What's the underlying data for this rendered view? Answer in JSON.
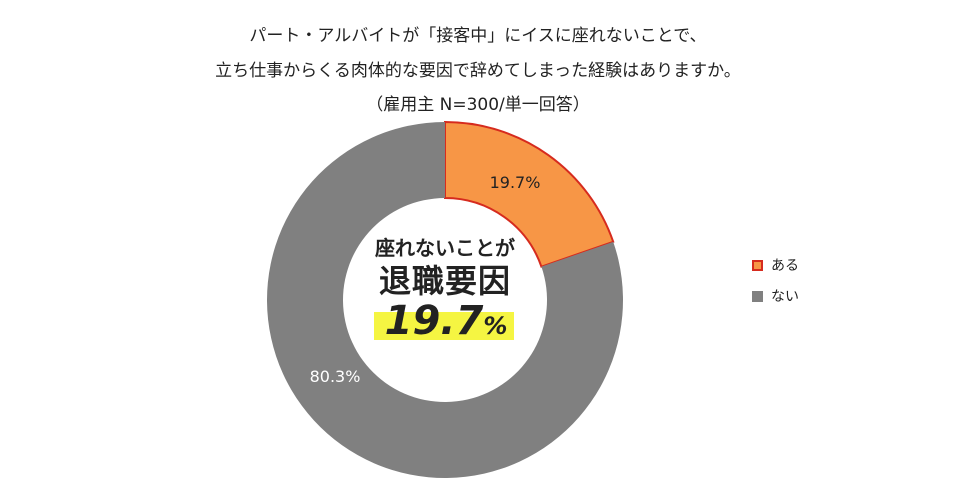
{
  "header": {
    "line1": "パート・アルバイトが「接客中」にイスに座れないことで、",
    "line2": "立ち仕事からくる肉体的な要因で辞めてしまった経験はありますか。",
    "line3": "（雇用主 N=300/単一回答）"
  },
  "center": {
    "line1": "座れないことが",
    "line2": "退職要因",
    "value": "19.7",
    "unit": "%"
  },
  "colors": {
    "aru": "#f79646",
    "aru_border": "#d62b1e",
    "nai": "#808080"
  },
  "chart_data": {
    "type": "pie",
    "style": "donut",
    "title": "パート・アルバイトが「接客中」にイスに座れないことで、立ち仕事からくる肉体的な要因で辞めてしまった経験はありますか。",
    "subtitle": "（雇用主 N=300/単一回答）",
    "categories": [
      "ある",
      "ない"
    ],
    "values": [
      19.7,
      80.3
    ],
    "labels": [
      "19.7%",
      "80.3%"
    ],
    "legend_position": "right"
  }
}
